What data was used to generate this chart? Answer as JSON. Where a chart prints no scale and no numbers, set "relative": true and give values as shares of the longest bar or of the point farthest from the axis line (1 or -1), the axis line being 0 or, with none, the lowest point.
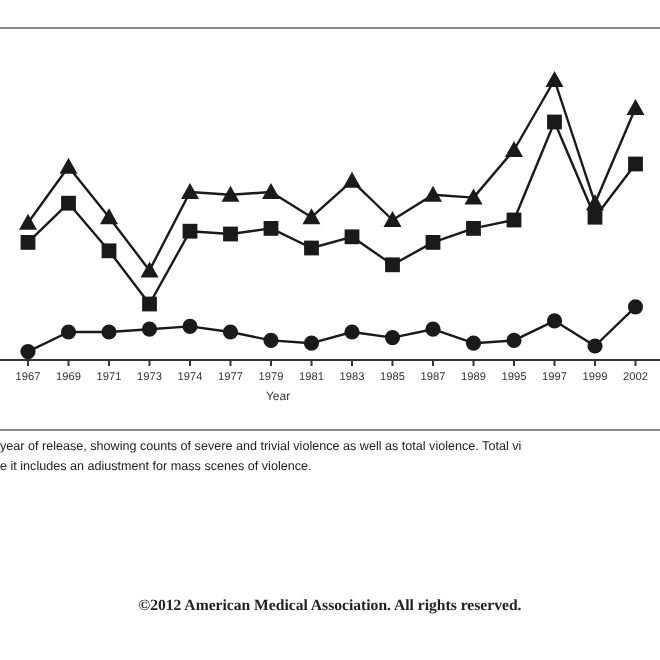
{
  "chart_data": {
    "type": "line",
    "relative": true,
    "xlabel": "Year",
    "categories": [
      "1967",
      "1969",
      "1971",
      "1973",
      "1974",
      "1977",
      "1979",
      "1981",
      "1983",
      "1985",
      "1987",
      "1989",
      "1995",
      "1997",
      "1999",
      "2002"
    ],
    "series": [
      {
        "color": "#1a1a1a",
        "marker": "triangle",
        "values": [
          0.49,
          0.69,
          0.51,
          0.32,
          0.6,
          0.59,
          0.6,
          0.51,
          0.64,
          0.5,
          0.59,
          0.58,
          0.75,
          1,
          0.56,
          0.9
        ]
      },
      {
        "color": "#1a1a1a",
        "marker": "square",
        "values": [
          0.42,
          0.56,
          0.39,
          0.2,
          0.46,
          0.45,
          0.47,
          0.4,
          0.44,
          0.34,
          0.42,
          0.47,
          0.5,
          0.85,
          0.51,
          0.7
        ]
      },
      {
        "color": "#1a1a1a",
        "marker": "circle",
        "values": [
          0.03,
          0.1,
          0.1,
          0.11,
          0.12,
          0.1,
          0.07,
          0.06,
          0.1,
          0.08,
          0.11,
          0.06,
          0.07,
          0.14,
          0.05,
          0.19
        ]
      }
    ],
    "annotations": [
      "year of release, showing counts of severe and trivial violence as well as total violence. Total vi",
      "e it includes an adiustment for mass scenes of violence.",
      "©2012 American Medical Association. All rights reserved."
    ]
  }
}
